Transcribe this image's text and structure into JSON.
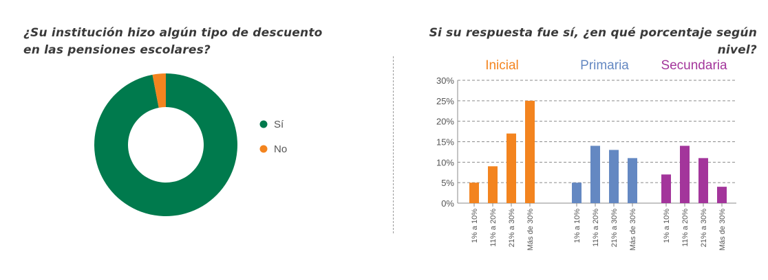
{
  "pie_title_line1": "¿Su institución hizo algún tipo de descuento",
  "pie_title_line2": "en las pensiones escolares?",
  "bar_title": "Si su respuesta fue sí, ¿en qué porcentaje según nivel?",
  "colors": {
    "green": "#007a4d",
    "orange": "#f3841f",
    "blue": "#6488c2",
    "purple": "#a3359b"
  },
  "chart_data": [
    {
      "type": "pie",
      "donut": true,
      "title": "¿Su institución hizo algún tipo de descuento en las pensiones escolares?",
      "legend_position": "right",
      "slices": [
        {
          "label": "Sí",
          "value": 97,
          "color": "#007a4d"
        },
        {
          "label": "No",
          "value": 3,
          "color": "#f3841f"
        }
      ]
    },
    {
      "type": "bar",
      "title": "Si su respuesta fue sí, ¿en qué porcentaje según nivel?",
      "ylim": [
        0,
        30
      ],
      "yticks": [
        "0%",
        "5%",
        "10%",
        "15%",
        "20%",
        "25%",
        "30%"
      ],
      "ytick_values": [
        0,
        5,
        10,
        15,
        20,
        25,
        30
      ],
      "grid": true,
      "groups": [
        {
          "name": "Inicial",
          "color": "#f3841f",
          "categories": [
            "1% a 10%",
            "11% a 20%",
            "21% a 30%",
            "Más de 30%"
          ],
          "values": [
            5,
            9,
            17,
            25
          ]
        },
        {
          "name": "Primaria",
          "color": "#6488c2",
          "categories": [
            "1% a 10%",
            "11% a 20%",
            "21% a 30%",
            "Más de 30%"
          ],
          "values": [
            5,
            14,
            13,
            11
          ]
        },
        {
          "name": "Secundaria",
          "color": "#a3359b",
          "categories": [
            "1% a 10%",
            "11% a 20%",
            "21% a 30%",
            "Más de 30%"
          ],
          "values": [
            7,
            14,
            11,
            4
          ]
        }
      ]
    }
  ]
}
